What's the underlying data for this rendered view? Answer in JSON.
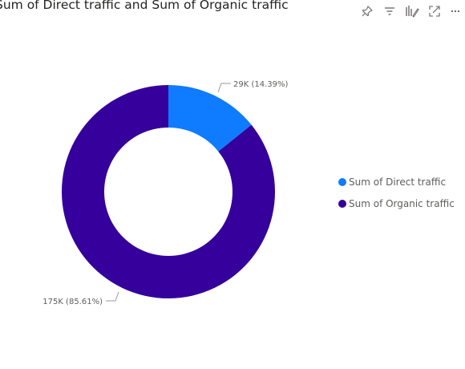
{
  "visual": {
    "title": "Sum of Direct traffic and Sum of Organic traffic"
  },
  "toolbar": {
    "icons": [
      "pin-icon",
      "filter-icon",
      "format-visual-icon",
      "focus-mode-icon",
      "more-options-icon"
    ]
  },
  "chart_data": {
    "type": "pie",
    "variant": "donut",
    "title": "Sum of Direct traffic and Sum of Organic traffic",
    "slices": [
      {
        "name": "Sum of Direct traffic",
        "value": 29,
        "percent": 14.39,
        "label": "29K (14.39%)",
        "color": "#0F7BFF"
      },
      {
        "name": "Sum of Organic traffic",
        "value": 175,
        "percent": 85.61,
        "label": "175K (85.61%)",
        "color": "#35009C"
      }
    ],
    "legend": {
      "placement": "right",
      "items": [
        "Sum of Direct traffic",
        "Sum of Organic traffic"
      ]
    }
  }
}
